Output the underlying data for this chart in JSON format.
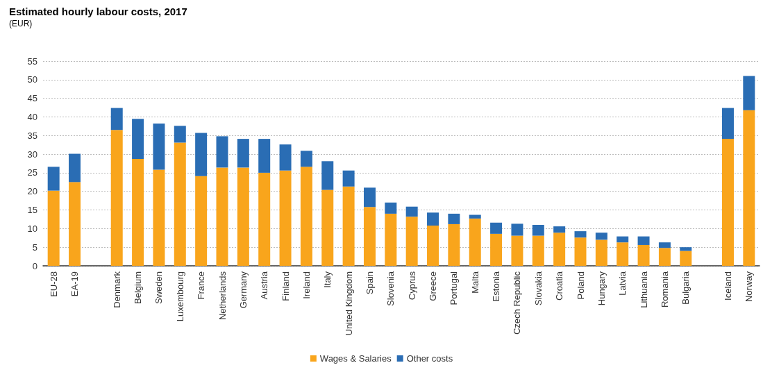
{
  "chart_data": {
    "type": "bar",
    "title": "Estimated hourly labour costs, 2017",
    "subtitle": "(EUR)",
    "categories": [
      "EU-28",
      "EA-19",
      null,
      "Denmark",
      "Belgium",
      "Sweden",
      "Luxembourg",
      "France",
      "Netherlands",
      "Germany",
      "Austria",
      "Finland",
      "Ireland",
      "Italy",
      "United Kingdom",
      "Spain",
      "Slovenia",
      "Cyprus",
      "Greece",
      "Portugal",
      "Malta",
      "Estonia",
      "Czech Republic",
      "Slovakia",
      "Croatia",
      "Poland",
      "Hungary",
      "Latvia",
      "Lithuania",
      "Romania",
      "Bulgaria",
      null,
      "Iceland",
      "Norway"
    ],
    "stacked": true,
    "series": [
      {
        "name": "Wages & Salaries",
        "color": "#f9a51c",
        "values": [
          20.2,
          22.5,
          null,
          36.5,
          28.7,
          25.8,
          33.1,
          24.1,
          26.4,
          26.4,
          25.0,
          25.6,
          26.6,
          20.4,
          21.3,
          15.8,
          14.0,
          13.2,
          10.8,
          11.2,
          12.7,
          8.6,
          8.1,
          8.1,
          8.9,
          7.6,
          7.0,
          6.3,
          5.6,
          4.8,
          4.0,
          null,
          34.1,
          41.8
        ]
      },
      {
        "name": "Other costs",
        "color": "#2a6db4",
        "values": [
          6.4,
          7.6,
          null,
          5.9,
          10.8,
          12.4,
          4.5,
          11.6,
          8.4,
          7.7,
          9.1,
          7.0,
          4.3,
          7.7,
          4.3,
          5.2,
          3.0,
          2.7,
          3.5,
          2.8,
          1.0,
          3.0,
          3.2,
          2.9,
          1.7,
          1.7,
          1.9,
          1.6,
          2.3,
          1.5,
          1.0,
          null,
          8.3,
          9.2
        ]
      }
    ],
    "ylim": [
      0,
      55
    ],
    "yticks": [
      0,
      5,
      10,
      15,
      20,
      25,
      30,
      35,
      40,
      45,
      50,
      55
    ],
    "grid": "y",
    "legend": "bottom"
  }
}
